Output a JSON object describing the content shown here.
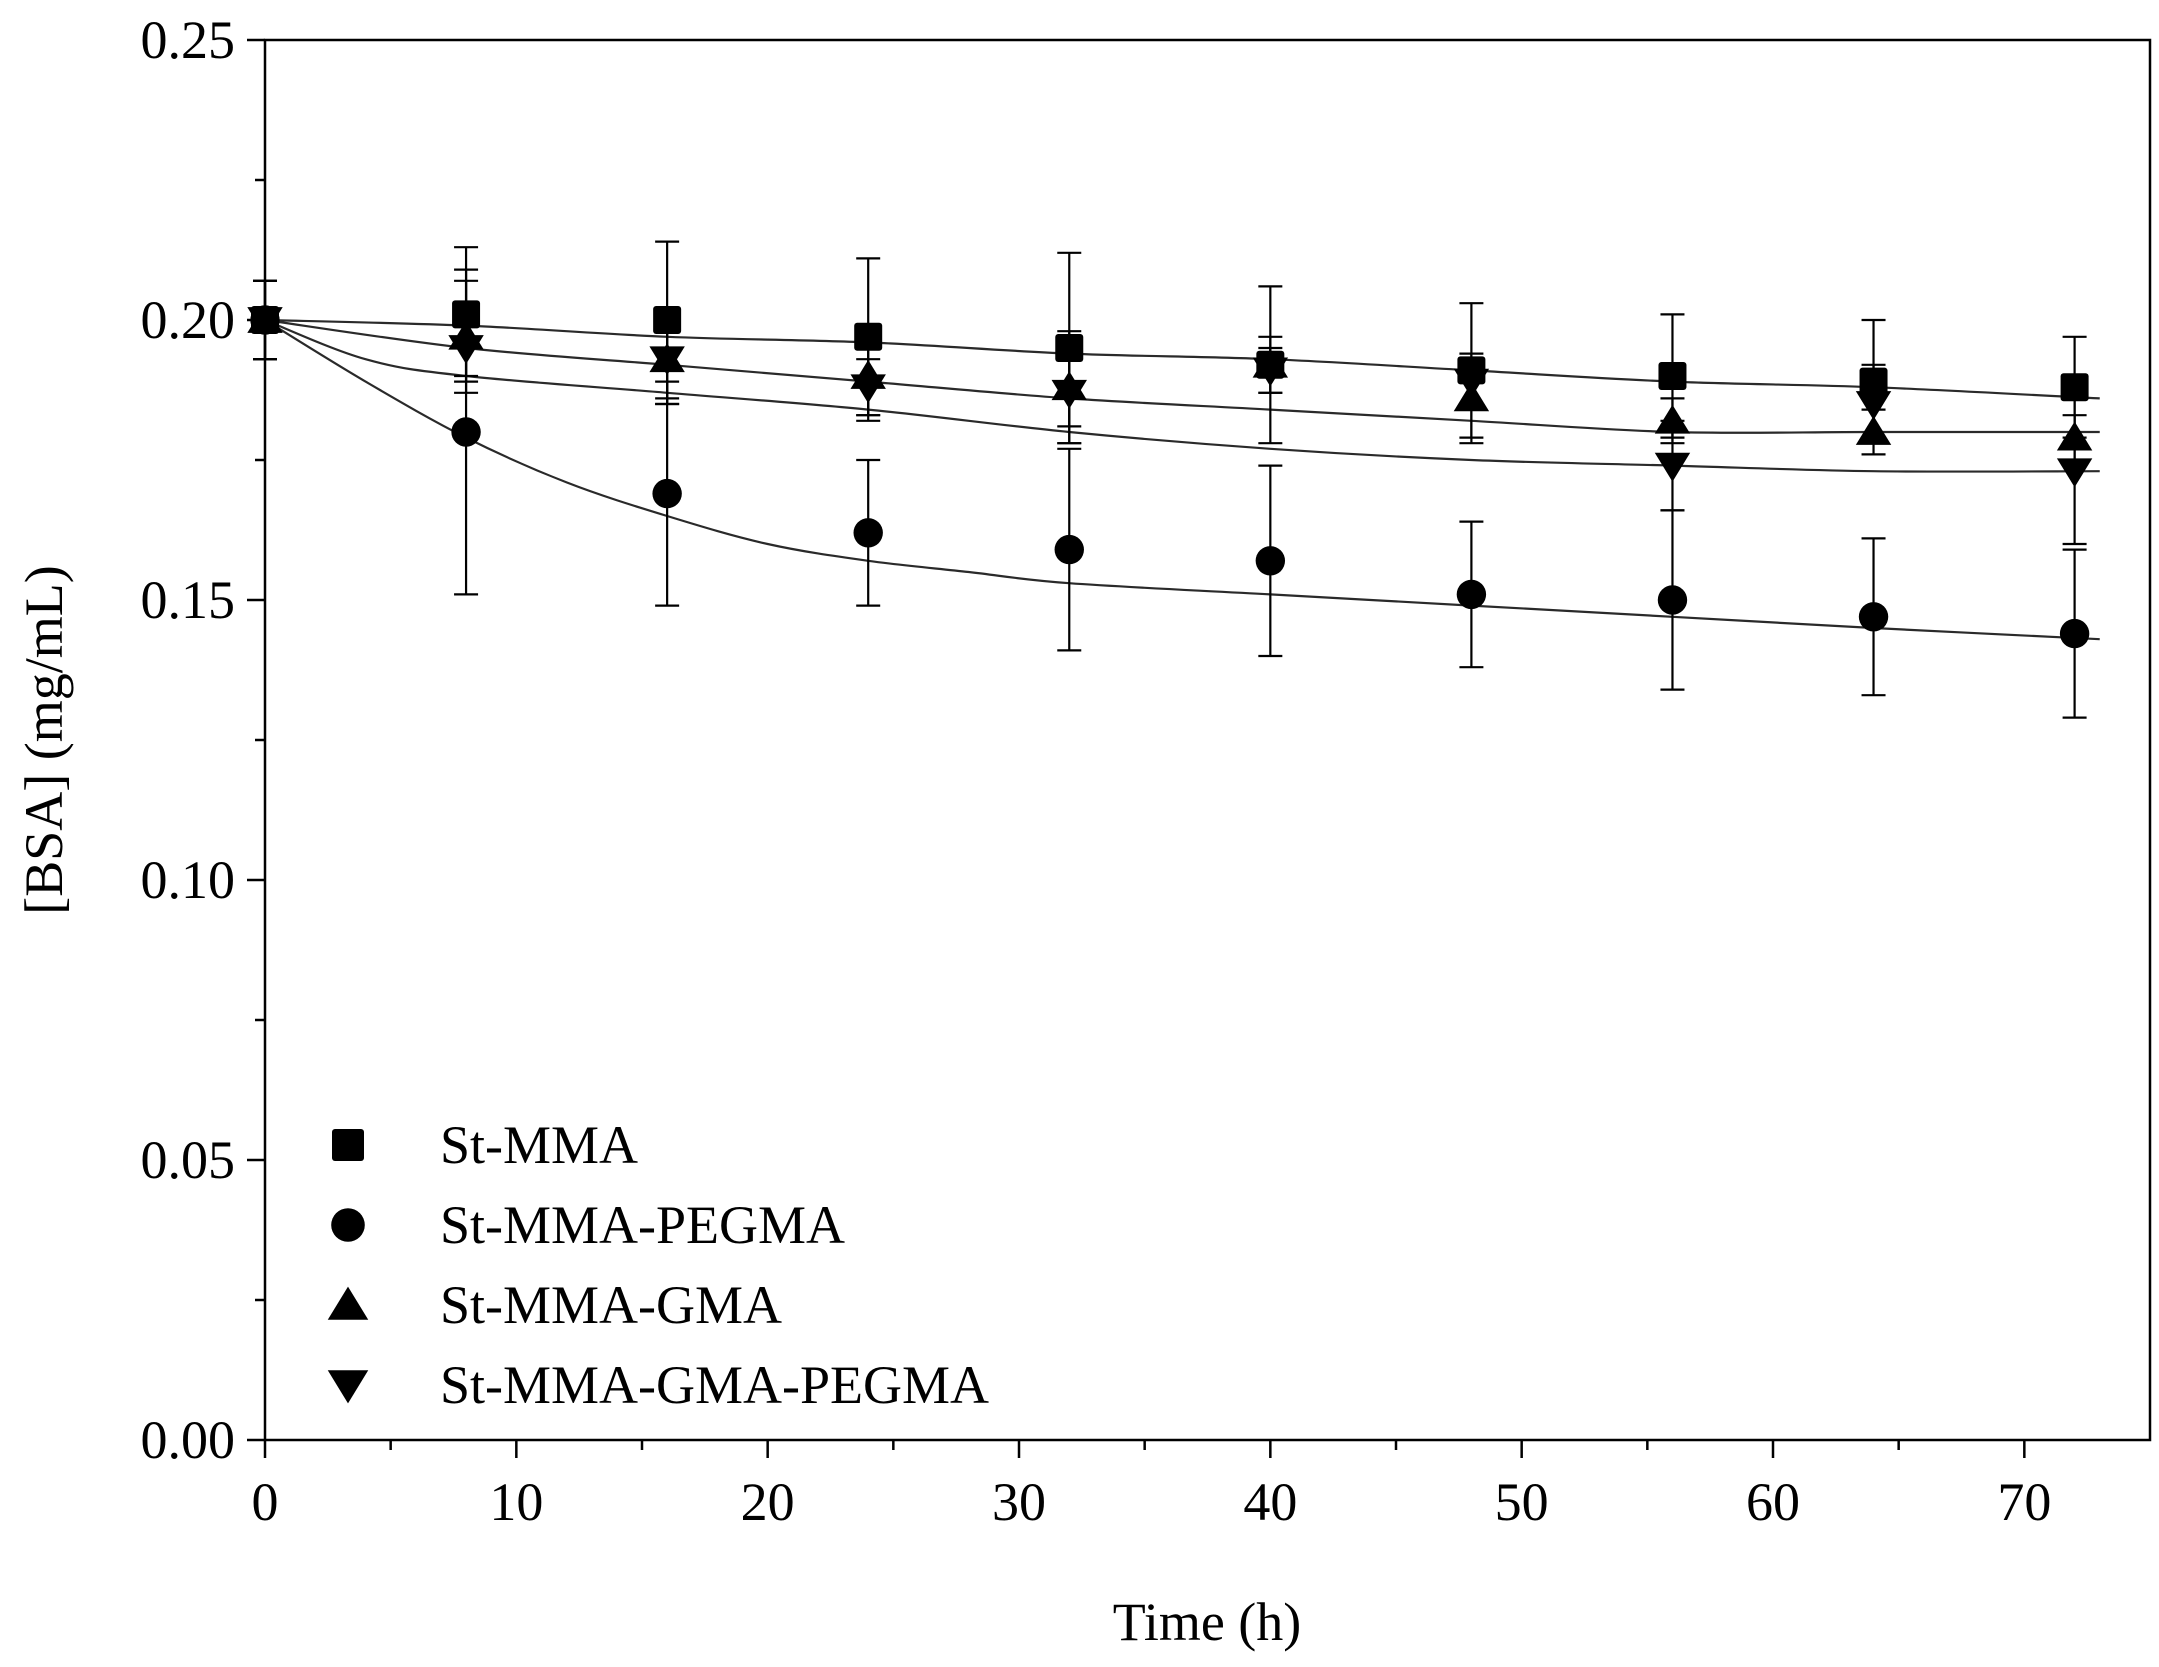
{
  "chart_data": {
    "type": "scatter",
    "title": "",
    "xlabel": "Time (h)",
    "ylabel": "[BSA] (mg/mL)",
    "xlim": [
      0,
      75
    ],
    "ylim": [
      0,
      0.25
    ],
    "xticks": [
      0,
      10,
      20,
      30,
      40,
      50,
      60,
      70
    ],
    "xtick_labels": [
      "0",
      "10",
      "20",
      "30",
      "40",
      "50",
      "60",
      "70"
    ],
    "yticks": [
      0,
      0.05,
      0.1,
      0.15,
      0.2,
      0.25
    ],
    "ytick_labels": [
      "0.00",
      "0.05",
      "0.10",
      "0.15",
      "0.20",
      "0.25"
    ],
    "grid": false,
    "legend_position": "bottom-left",
    "series": [
      {
        "name": "St-MMA",
        "marker": "square",
        "x": [
          0,
          8,
          16,
          24,
          32,
          40,
          48,
          56,
          64,
          72
        ],
        "y": [
          0.2,
          0.201,
          0.2,
          0.197,
          0.195,
          0.192,
          0.191,
          0.19,
          0.189,
          0.188
        ],
        "err": [
          0.007,
          0.012,
          0.014,
          0.014,
          0.017,
          0.014,
          0.012,
          0.011,
          0.011,
          0.009
        ],
        "fit": [
          [
            0,
            0.2
          ],
          [
            8,
            0.199
          ],
          [
            16,
            0.197
          ],
          [
            24,
            0.196
          ],
          [
            32,
            0.194
          ],
          [
            40,
            0.193
          ],
          [
            48,
            0.191
          ],
          [
            56,
            0.189
          ],
          [
            64,
            0.188
          ],
          [
            73,
            0.186
          ]
        ]
      },
      {
        "name": "St-MMA-PEGMA",
        "marker": "circle",
        "x": [
          0,
          8,
          16,
          24,
          32,
          40,
          48,
          56,
          64,
          72
        ],
        "y": [
          0.2,
          0.18,
          0.169,
          0.162,
          0.159,
          0.157,
          0.151,
          0.15,
          0.147,
          0.144
        ],
        "err": [
          0.007,
          0.029,
          0.02,
          0.013,
          0.018,
          0.017,
          0.013,
          0.016,
          0.014,
          0.015
        ],
        "fit": [
          [
            0,
            0.2
          ],
          [
            4,
            0.189
          ],
          [
            8,
            0.179
          ],
          [
            12,
            0.171
          ],
          [
            16,
            0.165
          ],
          [
            20,
            0.16
          ],
          [
            24,
            0.157
          ],
          [
            28,
            0.155
          ],
          [
            32,
            0.153
          ],
          [
            40,
            0.151
          ],
          [
            48,
            0.149
          ],
          [
            56,
            0.147
          ],
          [
            64,
            0.145
          ],
          [
            73,
            0.143
          ]
        ]
      },
      {
        "name": "St-MMA-GMA",
        "marker": "triangle-up",
        "x": [
          0,
          8,
          16,
          24,
          32,
          40,
          48,
          56,
          64,
          72
        ],
        "y": [
          0.2,
          0.197,
          0.193,
          0.19,
          0.188,
          0.192,
          0.186,
          0.182,
          0.18,
          0.179
        ],
        "err": [
          0.007,
          0.01,
          0.008,
          0.008,
          0.01,
          0.005,
          0.008,
          0.004,
          0.004,
          0.004
        ],
        "fit": [
          [
            0,
            0.2
          ],
          [
            8,
            0.195
          ],
          [
            16,
            0.192
          ],
          [
            24,
            0.189
          ],
          [
            32,
            0.186
          ],
          [
            40,
            0.184
          ],
          [
            48,
            0.182
          ],
          [
            56,
            0.18
          ],
          [
            64,
            0.18
          ],
          [
            73,
            0.18
          ]
        ]
      },
      {
        "name": "St-MMA-GMA-PEGMA",
        "marker": "triangle-down",
        "x": [
          0,
          8,
          16,
          24,
          32,
          40,
          48,
          56,
          64,
          72
        ],
        "y": [
          0.2,
          0.195,
          0.193,
          0.188,
          0.187,
          0.191,
          0.189,
          0.174,
          0.185,
          0.173
        ],
        "err": [
          0.007,
          0.005,
          0.008,
          0.005,
          0.006,
          0.004,
          0.004,
          0.008,
          0.007,
          0.013
        ],
        "fit": [
          [
            0,
            0.2
          ],
          [
            4,
            0.193
          ],
          [
            8,
            0.19
          ],
          [
            16,
            0.187
          ],
          [
            24,
            0.184
          ],
          [
            32,
            0.18
          ],
          [
            40,
            0.177
          ],
          [
            48,
            0.175
          ],
          [
            56,
            0.174
          ],
          [
            64,
            0.173
          ],
          [
            73,
            0.173
          ]
        ]
      }
    ]
  }
}
